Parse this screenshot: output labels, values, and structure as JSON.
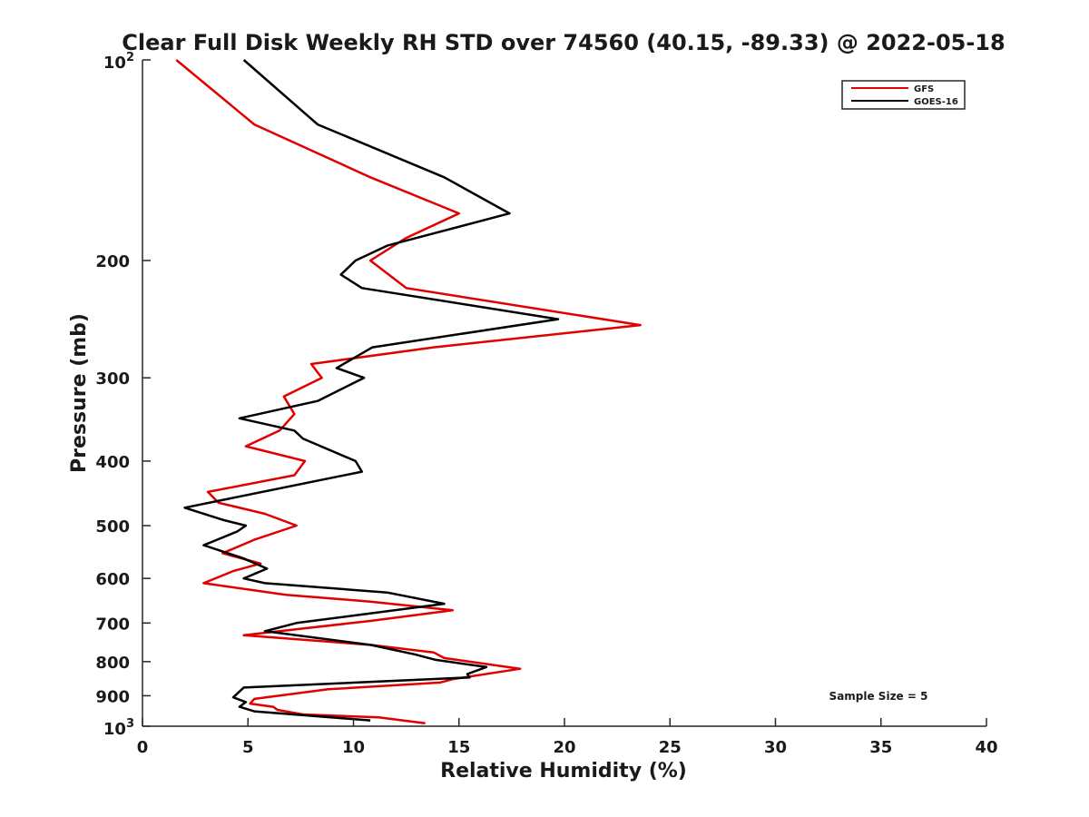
{
  "chart_data": {
    "type": "line",
    "title": "Clear Full Disk Weekly RH STD over 74560 (40.15, -89.33) @ 2022-05-18",
    "xlabel": "Relative Humidity (%)",
    "ylabel": "Pressure (mb)",
    "xlim": [
      0,
      40
    ],
    "ylim": [
      100,
      1000
    ],
    "yscale": "log",
    "y_reversed": true,
    "grid": false,
    "legend_placement": "top-right",
    "x_ticks": [
      "0",
      "5",
      "10",
      "15",
      "20",
      "25",
      "30",
      "35",
      "40"
    ],
    "y_ticks": [
      {
        "value": 100,
        "base": "10",
        "exp": "2"
      },
      {
        "value": 200,
        "label": "200"
      },
      {
        "value": 300,
        "label": "300"
      },
      {
        "value": 400,
        "label": "400"
      },
      {
        "value": 500,
        "label": "500"
      },
      {
        "value": 600,
        "label": "600"
      },
      {
        "value": 700,
        "label": "700"
      },
      {
        "value": 800,
        "label": "800"
      },
      {
        "value": 900,
        "label": "900"
      },
      {
        "value": 1000,
        "base": "10",
        "exp": "3"
      }
    ],
    "annotation": "Sample Size = 5",
    "series": [
      {
        "name": "GFS",
        "color": "#e00000",
        "points": [
          [
            1.6,
            100
          ],
          [
            5.3,
            125
          ],
          [
            10.8,
            150
          ],
          [
            15.0,
            170
          ],
          [
            12.5,
            185
          ],
          [
            10.8,
            200
          ],
          [
            12.5,
            220
          ],
          [
            23.6,
            250
          ],
          [
            13.8,
            270
          ],
          [
            8.0,
            286
          ],
          [
            8.5,
            300
          ],
          [
            6.7,
            320
          ],
          [
            7.2,
            340
          ],
          [
            6.5,
            360
          ],
          [
            4.9,
            380
          ],
          [
            7.7,
            400
          ],
          [
            7.2,
            420
          ],
          [
            3.1,
            445
          ],
          [
            3.6,
            462
          ],
          [
            5.8,
            480
          ],
          [
            7.3,
            500
          ],
          [
            5.3,
            525
          ],
          [
            3.8,
            550
          ],
          [
            5.6,
            570
          ],
          [
            4.3,
            585
          ],
          [
            2.9,
            610
          ],
          [
            6.8,
            635
          ],
          [
            10.8,
            650
          ],
          [
            14.7,
            670
          ],
          [
            10.8,
            695
          ],
          [
            4.8,
            730
          ],
          [
            10.8,
            755
          ],
          [
            13.8,
            775
          ],
          [
            14.3,
            790
          ],
          [
            17.9,
            820
          ],
          [
            14.7,
            850
          ],
          [
            14.1,
            860
          ],
          [
            8.8,
            880
          ],
          [
            5.3,
            910
          ],
          [
            5.1,
            925
          ],
          [
            6.2,
            935
          ],
          [
            6.4,
            945
          ],
          [
            7.6,
            960
          ],
          [
            11.2,
            970
          ],
          [
            13.4,
            990
          ]
        ]
      },
      {
        "name": "GOES-16",
        "color": "#000000",
        "points": [
          [
            4.8,
            100
          ],
          [
            8.3,
            125
          ],
          [
            14.3,
            150
          ],
          [
            17.4,
            170
          ],
          [
            11.6,
            190
          ],
          [
            10.1,
            200
          ],
          [
            9.4,
            210
          ],
          [
            10.4,
            220
          ],
          [
            19.7,
            245
          ],
          [
            10.9,
            270
          ],
          [
            9.2,
            290
          ],
          [
            10.5,
            300
          ],
          [
            8.3,
            325
          ],
          [
            4.6,
            345
          ],
          [
            7.2,
            360
          ],
          [
            7.6,
            370
          ],
          [
            10.1,
            400
          ],
          [
            10.4,
            415
          ],
          [
            2.0,
            470
          ],
          [
            3.8,
            490
          ],
          [
            4.9,
            500
          ],
          [
            4.5,
            510
          ],
          [
            2.9,
            535
          ],
          [
            4.8,
            560
          ],
          [
            5.9,
            580
          ],
          [
            4.8,
            600
          ],
          [
            5.8,
            610
          ],
          [
            11.6,
            630
          ],
          [
            14.3,
            655
          ],
          [
            7.3,
            700
          ],
          [
            5.8,
            720
          ],
          [
            10.8,
            755
          ],
          [
            12.9,
            780
          ],
          [
            13.9,
            795
          ],
          [
            16.3,
            815
          ],
          [
            15.4,
            835
          ],
          [
            15.5,
            845
          ],
          [
            4.8,
            875
          ],
          [
            4.3,
            905
          ],
          [
            4.9,
            920
          ],
          [
            4.6,
            935
          ],
          [
            5.3,
            950
          ],
          [
            10.8,
            980
          ]
        ]
      }
    ]
  }
}
